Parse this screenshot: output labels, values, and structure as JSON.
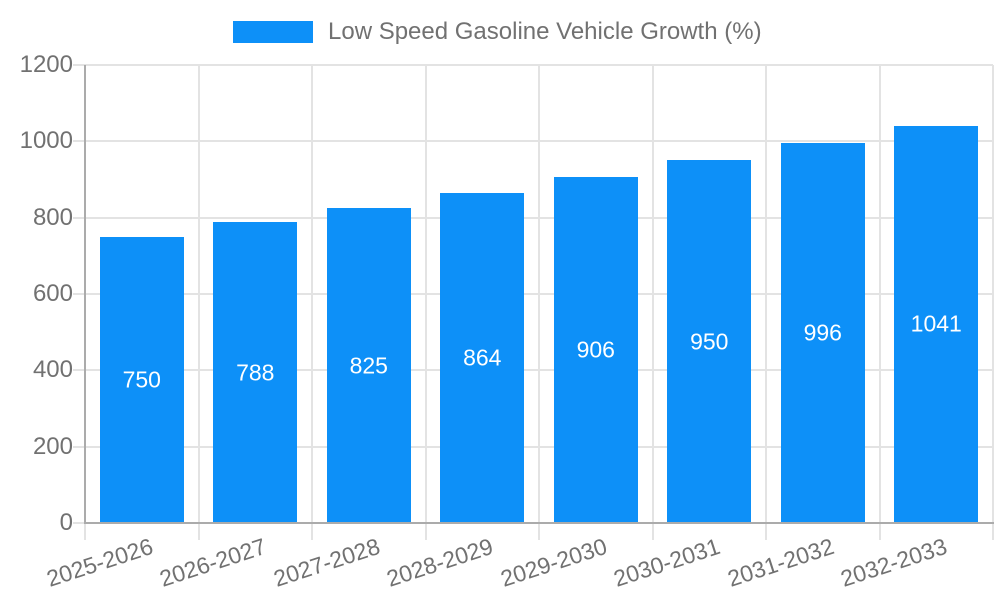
{
  "chart_data": {
    "type": "bar",
    "title": "",
    "xlabel": "",
    "ylabel": "",
    "legend": [
      "Low Speed Gasoline Vehicle Growth (%)"
    ],
    "legend_position": "top",
    "categories": [
      "2025-2026",
      "2026-2027",
      "2027-2028",
      "2028-2029",
      "2029-2030",
      "2030-2031",
      "2031-2032",
      "2032-2033"
    ],
    "values": [
      750,
      788,
      825,
      864,
      906,
      950,
      996,
      1041
    ],
    "value_labels": [
      "750",
      "788",
      "825",
      "864",
      "906",
      "950",
      "996",
      "1041"
    ],
    "ylim": [
      0,
      1200
    ],
    "yticks": [
      0,
      200,
      400,
      600,
      800,
      1000,
      1200
    ],
    "ytick_labels": [
      "0",
      "200",
      "400",
      "600",
      "800",
      "1000",
      "1200"
    ],
    "grid": true,
    "colors": {
      "bar": "#0d90f8",
      "value_label": "#ffffff",
      "grid": "#e3e3e3",
      "axis": "#ababab",
      "tick_text": "#717171",
      "legend_text": "#717171",
      "background": "#ffffff"
    }
  }
}
